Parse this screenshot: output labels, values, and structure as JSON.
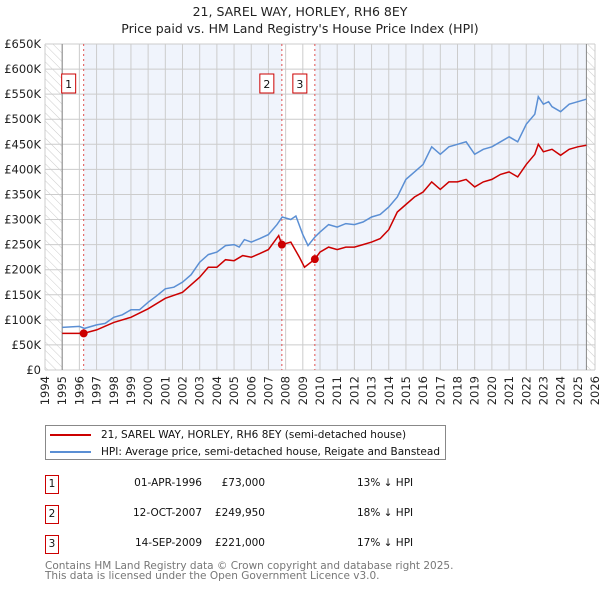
{
  "chart_data": {
    "type": "line",
    "title": "21, SAREL WAY, HORLEY, RH6 8EY",
    "subtitle": "Price paid vs. HM Land Registry's House Price Index (HPI)",
    "xlim": [
      1994,
      2026
    ],
    "ylim": [
      0,
      650000
    ],
    "x_ticks": [
      "1994",
      "1995",
      "1996",
      "1997",
      "1998",
      "1999",
      "2000",
      "2001",
      "2002",
      "2003",
      "2004",
      "2005",
      "2006",
      "2007",
      "2008",
      "2009",
      "2010",
      "2011",
      "2012",
      "2013",
      "2014",
      "2015",
      "2016",
      "2017",
      "2018",
      "2019",
      "2020",
      "2021",
      "2022",
      "2023",
      "2024",
      "2025",
      "2026"
    ],
    "y_ticks": [
      {
        "v": 0,
        "l": "£0"
      },
      {
        "v": 50000,
        "l": "£50K"
      },
      {
        "v": 100000,
        "l": "£100K"
      },
      {
        "v": 150000,
        "l": "£150K"
      },
      {
        "v": 200000,
        "l": "£200K"
      },
      {
        "v": 250000,
        "l": "£250K"
      },
      {
        "v": 300000,
        "l": "£300K"
      },
      {
        "v": 350000,
        "l": "£350K"
      },
      {
        "v": 400000,
        "l": "£400K"
      },
      {
        "v": 450000,
        "l": "£450K"
      },
      {
        "v": 500000,
        "l": "£500K"
      },
      {
        "v": 550000,
        "l": "£550K"
      },
      {
        "v": 600000,
        "l": "£600K"
      },
      {
        "v": 650000,
        "l": "£650K"
      }
    ],
    "grid": true,
    "series": [
      {
        "name": "21, SAREL WAY, HORLEY, RH6 8EY (semi-detached house)",
        "color": "#cc0000",
        "x": [
          1995,
          1996.25,
          1997,
          1998,
          1999,
          2000,
          2001,
          2002,
          2003,
          2003.5,
          2004,
          2004.5,
          2005,
          2005.5,
          2006,
          2006.5,
          2007,
          2007.6,
          2007.78,
          2008.3,
          2008.8,
          2009.1,
          2009.7,
          2010,
          2010.5,
          2011,
          2011.5,
          2012,
          2012.5,
          2013,
          2013.5,
          2014,
          2014.5,
          2015,
          2015.5,
          2016,
          2016.5,
          2017,
          2017.5,
          2018,
          2018.5,
          2019,
          2019.5,
          2020,
          2020.5,
          2021,
          2021.5,
          2022,
          2022.5,
          2022.7,
          2023,
          2023.5,
          2024,
          2024.5,
          2025,
          2025.5
        ],
        "y": [
          73000,
          73000,
          80000,
          95000,
          105000,
          122000,
          143000,
          155000,
          185000,
          205000,
          205000,
          220000,
          218000,
          228000,
          225000,
          232000,
          240000,
          268000,
          250000,
          255000,
          225000,
          205000,
          221000,
          235000,
          245000,
          240000,
          245000,
          245000,
          250000,
          255000,
          262000,
          280000,
          315000,
          330000,
          345000,
          355000,
          375000,
          360000,
          375000,
          375000,
          380000,
          365000,
          375000,
          380000,
          390000,
          395000,
          385000,
          410000,
          430000,
          450000,
          435000,
          440000,
          428000,
          440000,
          445000,
          448000
        ]
      },
      {
        "name": "HPI: Average price, semi-detached house, Reigate and Banstead",
        "color": "#5b8fd4",
        "x": [
          1995,
          1996,
          1996.3,
          1997,
          1997.5,
          1998,
          1998.5,
          1999,
          1999.5,
          2000,
          2000.5,
          2001,
          2001.5,
          2002,
          2002.5,
          2003,
          2003.5,
          2004,
          2004.5,
          2005,
          2005.3,
          2005.6,
          2006,
          2006.5,
          2007,
          2007.5,
          2007.8,
          2008,
          2008.3,
          2008.6,
          2009,
          2009.3,
          2009.7,
          2010,
          2010.5,
          2011,
          2011.5,
          2012,
          2012.5,
          2013,
          2013.5,
          2014,
          2014.5,
          2015,
          2015.5,
          2016,
          2016.5,
          2017,
          2017.5,
          2018,
          2018.5,
          2019,
          2019.5,
          2020,
          2020.5,
          2021,
          2021.5,
          2022,
          2022.5,
          2022.7,
          2023,
          2023.3,
          2023.5,
          2024,
          2024.5,
          2025,
          2025.5
        ],
        "y": [
          85000,
          87000,
          83000,
          90000,
          93000,
          105000,
          110000,
          120000,
          120000,
          135000,
          148000,
          162000,
          165000,
          175000,
          190000,
          215000,
          230000,
          235000,
          248000,
          250000,
          245000,
          260000,
          255000,
          262000,
          270000,
          290000,
          305000,
          303000,
          300000,
          307000,
          270000,
          248000,
          265000,
          275000,
          290000,
          285000,
          292000,
          290000,
          295000,
          305000,
          310000,
          325000,
          345000,
          380000,
          395000,
          410000,
          445000,
          430000,
          445000,
          450000,
          455000,
          430000,
          440000,
          445000,
          455000,
          465000,
          455000,
          490000,
          510000,
          545000,
          530000,
          535000,
          525000,
          515000,
          530000,
          535000,
          540000
        ]
      }
    ],
    "sales": [
      {
        "n": "1",
        "x": 1996.25,
        "y": 73000
      },
      {
        "n": "2",
        "x": 2007.78,
        "y": 249950
      },
      {
        "n": "3",
        "x": 2009.7,
        "y": 221000
      }
    ],
    "legend_position": "below"
  },
  "title": {
    "line1": "21, SAREL WAY, HORLEY, RH6 8EY",
    "line2": "Price paid vs. HM Land Registry's House Price Index (HPI)"
  },
  "legend": {
    "property": "21, SAREL WAY, HORLEY, RH6 8EY (semi-detached house)",
    "hpi": "HPI: Average price, semi-detached house, Reigate and Banstead"
  },
  "transactions": [
    {
      "n": "1",
      "date": "01-APR-1996",
      "price": "£73,000",
      "hpi": "13% ↓ HPI"
    },
    {
      "n": "2",
      "date": "12-OCT-2007",
      "price": "£249,950",
      "hpi": "18% ↓ HPI"
    },
    {
      "n": "3",
      "date": "14-SEP-2009",
      "price": "£221,000",
      "hpi": "17% ↓ HPI"
    }
  ],
  "footer": {
    "line1": "Contains HM Land Registry data © Crown copyright and database right 2025.",
    "line2": "This data is licensed under the Open Government Licence v3.0."
  }
}
